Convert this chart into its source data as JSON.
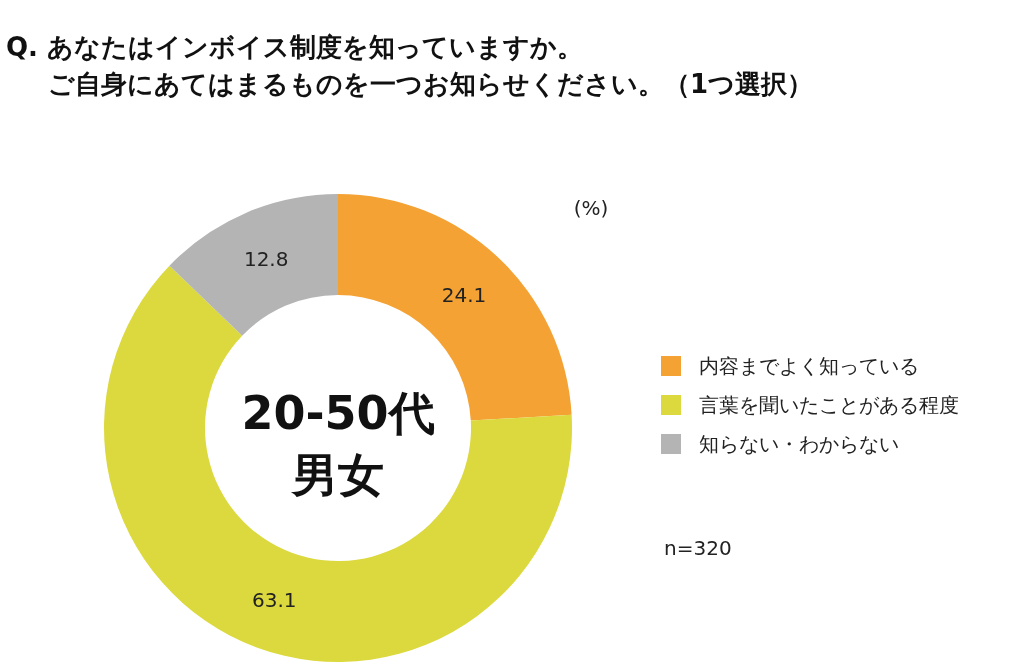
{
  "chart_data": {
    "type": "donut",
    "title": "Q. あなたはインボイス制度を知っていますか。ご自身にあてはまるものを一つお知らせください。（1つ選択）",
    "categories": [
      "内容までよく知っている",
      "言葉を聞いたことがある程度",
      "知らない・わからない"
    ],
    "values": [
      24.1,
      63.1,
      12.8
    ],
    "colors": [
      "#f4a233",
      "#dcd93e",
      "#b4b4b4"
    ],
    "data_labels": true,
    "legend": "right",
    "annotations": [
      "20-50代男女",
      "(%)",
      "n=320"
    ]
  }
}
